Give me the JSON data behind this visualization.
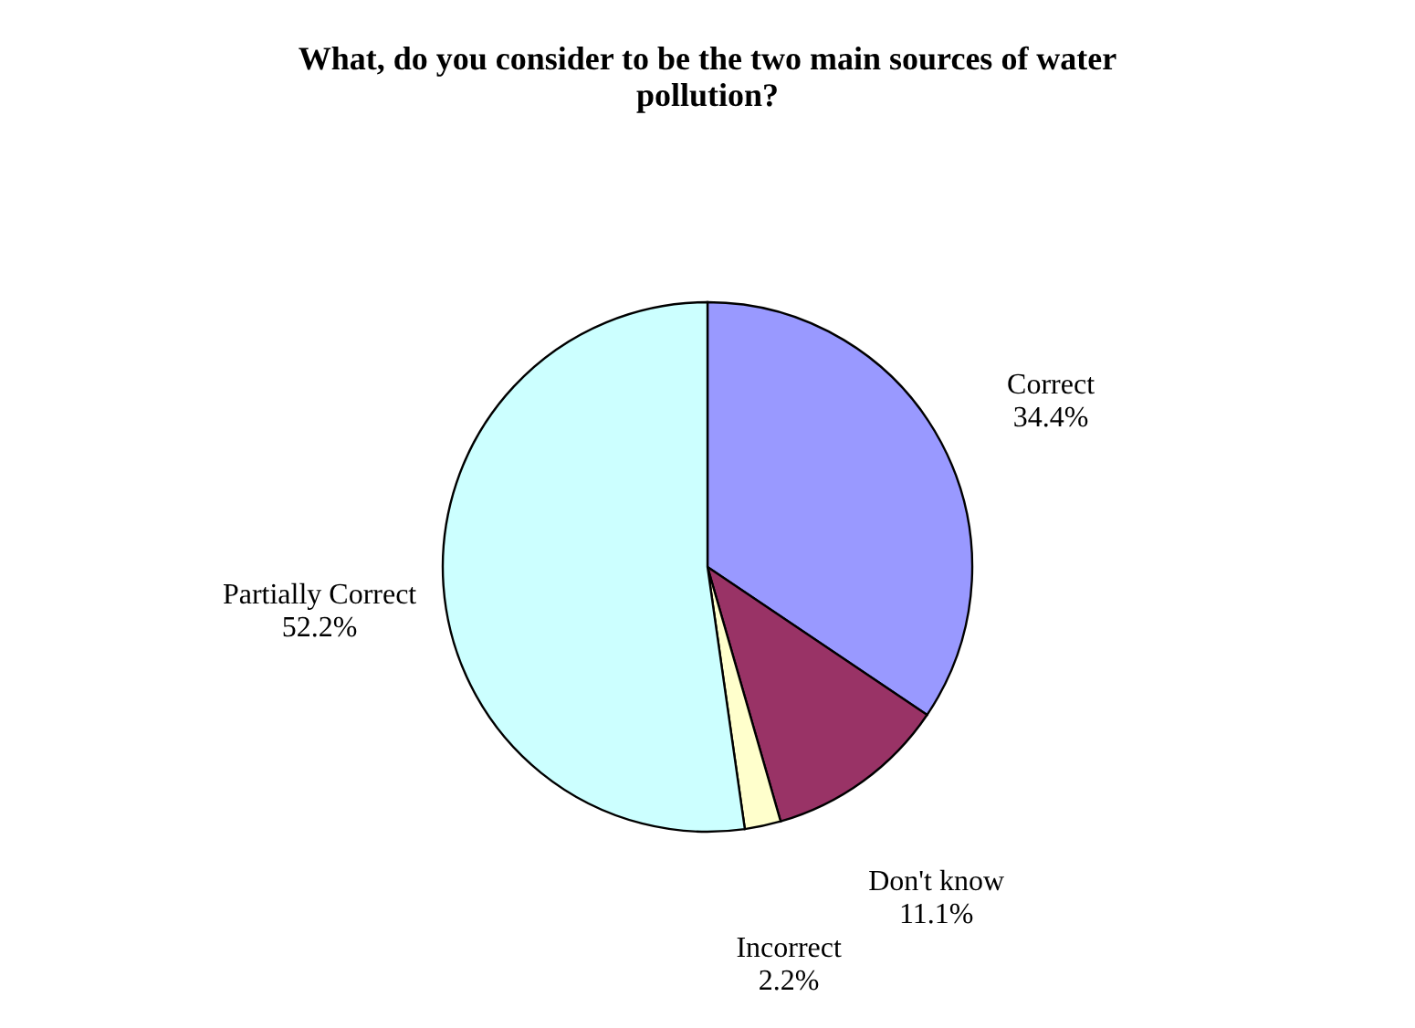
{
  "chart_data": {
    "type": "pie",
    "title": "What, do you consider to be the two main sources of water pollution?",
    "categories": [
      "Correct",
      "Don't know",
      "Incorrect",
      "Partially Correct"
    ],
    "values": [
      34.4,
      11.1,
      2.2,
      52.2
    ],
    "colors": [
      "#9999ff",
      "#993366",
      "#ffffcc",
      "#ccffff"
    ],
    "value_labels": [
      "34.4%",
      "11.1%",
      "2.2%",
      "52.2%"
    ]
  }
}
